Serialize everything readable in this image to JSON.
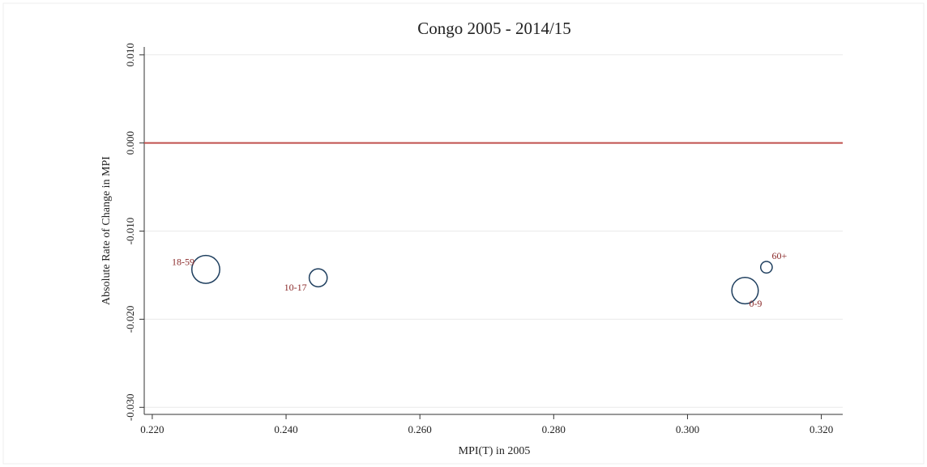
{
  "chart_data": {
    "type": "bubble",
    "title": "Congo 2005 - 2014/15",
    "x_label": "MPI(T) in 2005",
    "y_label": "Absolute Rate of Change in MPI",
    "xlim": [
      0.2188,
      0.3232
    ],
    "ylim": [
      -0.0308,
      0.0109
    ],
    "xticks": [
      {
        "value": 0.22,
        "label": "0.220"
      },
      {
        "value": 0.24,
        "label": "0.240"
      },
      {
        "value": 0.26,
        "label": "0.260"
      },
      {
        "value": 0.28,
        "label": "0.280"
      },
      {
        "value": 0.3,
        "label": "0.300"
      },
      {
        "value": 0.32,
        "label": "0.320"
      }
    ],
    "yticks": [
      {
        "value": 0.01,
        "label": "0.010"
      },
      {
        "value": 0,
        "label": "0.000"
      },
      {
        "value": -0.01,
        "label": "-0.010"
      },
      {
        "value": -0.02,
        "label": "-0.020"
      },
      {
        "value": -0.03,
        "label": "-0.030"
      }
    ],
    "grid": true,
    "reference_line": 0,
    "reference_color": "#c0504d",
    "series": [
      {
        "color": "#1f3f5f",
        "labels": [
          "18-59",
          "10-17",
          "0-9",
          "60+"
        ],
        "x": [
          0.228,
          0.2448,
          0.3086,
          0.3118
        ],
        "values": [
          -0.01435,
          -0.0153,
          -0.01675,
          -0.0141
        ],
        "sizes": [
          29,
          12,
          26,
          5
        ]
      }
    ]
  }
}
